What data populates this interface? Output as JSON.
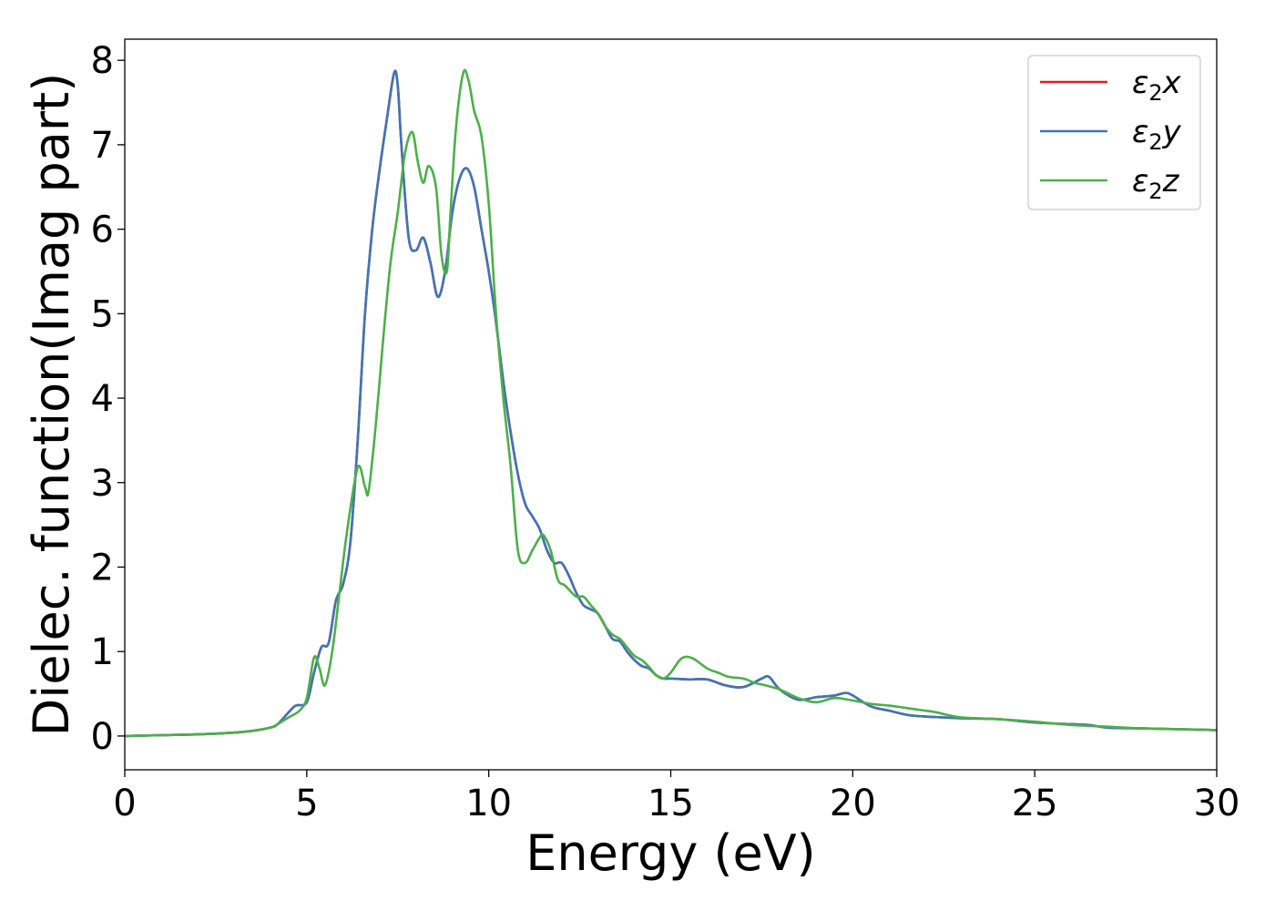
{
  "chart_data": {
    "type": "line",
    "xlabel": "Energy (eV)",
    "ylabel": "Dielec. function(Imag part)",
    "xlim": [
      0,
      30
    ],
    "ylim": [
      -0.4,
      8.25
    ],
    "xticks": [
      0,
      5,
      10,
      15,
      20,
      25,
      30
    ],
    "yticks": [
      0,
      1,
      2,
      3,
      4,
      5,
      6,
      7,
      8
    ],
    "grid": false,
    "legend_position": "top-right",
    "series": [
      {
        "name": "ε2x",
        "legend_main": "ε",
        "legend_sub": "2",
        "legend_tail": "x",
        "color": "#e41a1c",
        "x": [
          0,
          1,
          2,
          3,
          3.5,
          4,
          4.2,
          4.5,
          4.7,
          5,
          5.2,
          5.4,
          5.6,
          5.8,
          6,
          6.2,
          6.4,
          6.6,
          6.8,
          7,
          7.2,
          7.4,
          7.5,
          7.6,
          7.8,
          8,
          8.2,
          8.4,
          8.6,
          8.8,
          9,
          9.2,
          9.4,
          9.6,
          9.8,
          10,
          10.2,
          10.4,
          10.6,
          10.8,
          11,
          11.2,
          11.4,
          11.6,
          11.8,
          12,
          12.2,
          12.4,
          12.6,
          12.8,
          13,
          13.2,
          13.4,
          13.6,
          13.8,
          14,
          14.2,
          14.4,
          14.6,
          14.8,
          15,
          15.5,
          16,
          16.5,
          17,
          17.5,
          17.7,
          18,
          18.5,
          19,
          19.5,
          19.8,
          20,
          20.5,
          21,
          21.5,
          22,
          22.5,
          23,
          24,
          25,
          26,
          26.5,
          27,
          28,
          29,
          30
        ],
        "y": [
          0,
          0.01,
          0.02,
          0.04,
          0.06,
          0.1,
          0.14,
          0.28,
          0.36,
          0.4,
          0.75,
          1.05,
          1.1,
          1.6,
          1.8,
          2.3,
          3.5,
          5.0,
          6.0,
          6.7,
          7.3,
          7.85,
          7.7,
          7.0,
          5.9,
          5.75,
          5.9,
          5.6,
          5.2,
          5.5,
          6.2,
          6.6,
          6.72,
          6.5,
          6.0,
          5.5,
          4.9,
          4.2,
          3.6,
          3.1,
          2.75,
          2.6,
          2.45,
          2.2,
          2.05,
          2.05,
          1.9,
          1.7,
          1.55,
          1.5,
          1.45,
          1.3,
          1.15,
          1.12,
          1.0,
          0.9,
          0.83,
          0.8,
          0.72,
          0.68,
          0.68,
          0.67,
          0.67,
          0.6,
          0.58,
          0.68,
          0.7,
          0.55,
          0.43,
          0.46,
          0.48,
          0.51,
          0.48,
          0.35,
          0.3,
          0.25,
          0.23,
          0.22,
          0.21,
          0.2,
          0.16,
          0.14,
          0.13,
          0.1,
          0.09,
          0.08,
          0.07
        ]
      },
      {
        "name": "ε2y",
        "legend_main": "ε",
        "legend_sub": "2",
        "legend_tail": "y",
        "color": "#3f75b5",
        "x": [
          0,
          1,
          2,
          3,
          3.5,
          4,
          4.2,
          4.5,
          4.7,
          5,
          5.2,
          5.4,
          5.6,
          5.8,
          6,
          6.2,
          6.4,
          6.6,
          6.8,
          7,
          7.2,
          7.4,
          7.5,
          7.6,
          7.8,
          8,
          8.2,
          8.4,
          8.6,
          8.8,
          9,
          9.2,
          9.4,
          9.6,
          9.8,
          10,
          10.2,
          10.4,
          10.6,
          10.8,
          11,
          11.2,
          11.4,
          11.6,
          11.8,
          12,
          12.2,
          12.4,
          12.6,
          12.8,
          13,
          13.2,
          13.4,
          13.6,
          13.8,
          14,
          14.2,
          14.4,
          14.6,
          14.8,
          15,
          15.5,
          16,
          16.5,
          17,
          17.5,
          17.7,
          18,
          18.5,
          19,
          19.5,
          19.8,
          20,
          20.5,
          21,
          21.5,
          22,
          22.5,
          23,
          24,
          25,
          26,
          26.5,
          27,
          28,
          29,
          30
        ],
        "y": [
          0,
          0.01,
          0.02,
          0.04,
          0.06,
          0.1,
          0.14,
          0.28,
          0.36,
          0.4,
          0.75,
          1.05,
          1.1,
          1.6,
          1.8,
          2.3,
          3.5,
          5.0,
          6.0,
          6.7,
          7.3,
          7.85,
          7.7,
          7.0,
          5.9,
          5.75,
          5.9,
          5.6,
          5.2,
          5.5,
          6.2,
          6.6,
          6.72,
          6.5,
          6.0,
          5.5,
          4.9,
          4.2,
          3.6,
          3.1,
          2.75,
          2.6,
          2.45,
          2.2,
          2.05,
          2.05,
          1.9,
          1.7,
          1.55,
          1.5,
          1.45,
          1.3,
          1.15,
          1.12,
          1.0,
          0.9,
          0.83,
          0.8,
          0.72,
          0.68,
          0.68,
          0.67,
          0.67,
          0.6,
          0.58,
          0.68,
          0.7,
          0.55,
          0.43,
          0.46,
          0.48,
          0.51,
          0.48,
          0.35,
          0.3,
          0.25,
          0.23,
          0.22,
          0.21,
          0.2,
          0.16,
          0.14,
          0.13,
          0.1,
          0.09,
          0.08,
          0.07
        ]
      },
      {
        "name": "ε2z",
        "legend_main": "ε",
        "legend_sub": "2",
        "legend_tail": "z",
        "color": "#4daf4a",
        "x": [
          0,
          1,
          2,
          3,
          3.5,
          4,
          4.2,
          4.5,
          4.8,
          5,
          5.2,
          5.35,
          5.5,
          5.7,
          5.9,
          6.1,
          6.4,
          6.6,
          6.7,
          6.9,
          7.1,
          7.3,
          7.5,
          7.7,
          7.9,
          8.05,
          8.2,
          8.35,
          8.55,
          8.7,
          8.85,
          8.95,
          9.1,
          9.3,
          9.45,
          9.6,
          9.8,
          10,
          10.2,
          10.4,
          10.6,
          10.8,
          11,
          11.2,
          11.4,
          11.5,
          11.7,
          11.9,
          12.1,
          12.4,
          12.6,
          12.8,
          13,
          13.2,
          13.4,
          13.6,
          13.8,
          14,
          14.2,
          14.4,
          14.6,
          14.8,
          15,
          15.3,
          15.6,
          16,
          16.3,
          16.6,
          17,
          17.3,
          17.6,
          18,
          18.5,
          19,
          19.5,
          20,
          20.5,
          21,
          21.5,
          22,
          22.3,
          22.6,
          23,
          24,
          25,
          26,
          27,
          28,
          29,
          30
        ],
        "y": [
          0,
          0.01,
          0.02,
          0.04,
          0.06,
          0.1,
          0.14,
          0.22,
          0.3,
          0.45,
          0.93,
          0.8,
          0.6,
          1.0,
          1.7,
          2.4,
          3.18,
          2.95,
          2.9,
          3.7,
          4.7,
          5.6,
          6.2,
          6.9,
          7.15,
          6.8,
          6.55,
          6.75,
          6.5,
          5.7,
          5.5,
          6.2,
          7.2,
          7.85,
          7.75,
          7.4,
          7.1,
          6.3,
          5.0,
          4.0,
          3.2,
          2.2,
          2.05,
          2.2,
          2.35,
          2.38,
          2.2,
          1.85,
          1.78,
          1.65,
          1.65,
          1.55,
          1.45,
          1.3,
          1.2,
          1.15,
          1.05,
          0.95,
          0.9,
          0.82,
          0.72,
          0.68,
          0.75,
          0.92,
          0.92,
          0.8,
          0.75,
          0.7,
          0.68,
          0.63,
          0.6,
          0.55,
          0.45,
          0.4,
          0.45,
          0.42,
          0.38,
          0.36,
          0.33,
          0.3,
          0.28,
          0.25,
          0.22,
          0.2,
          0.17,
          0.13,
          0.11,
          0.09,
          0.08,
          0.07
        ]
      }
    ]
  }
}
